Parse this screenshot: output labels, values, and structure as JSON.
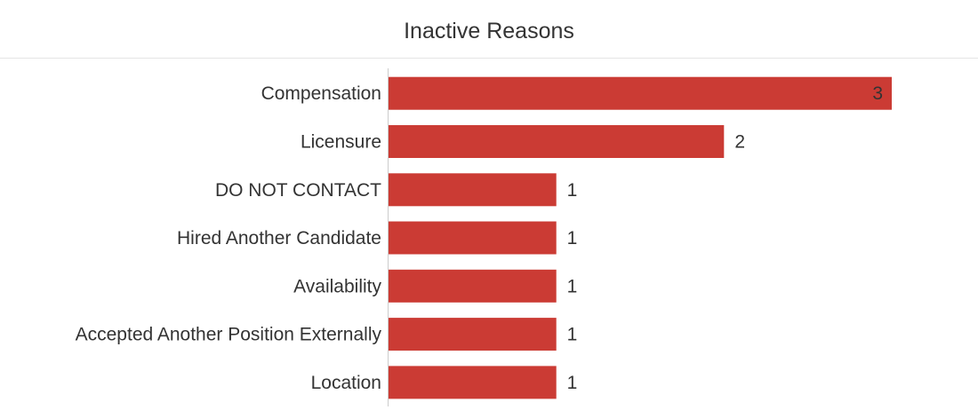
{
  "chart_data": {
    "type": "bar",
    "orientation": "horizontal",
    "title": "Inactive Reasons",
    "categories": [
      "Compensation",
      "Licensure",
      "DO NOT CONTACT",
      "Hired Another Candidate",
      "Availability",
      "Accepted Another Position Externally",
      "Location"
    ],
    "values": [
      3,
      2,
      1,
      1,
      1,
      1,
      1
    ],
    "xlim": [
      0,
      3
    ],
    "bar_color": "#cb3b34",
    "grid": false,
    "legend": "none",
    "data_labels": true
  }
}
